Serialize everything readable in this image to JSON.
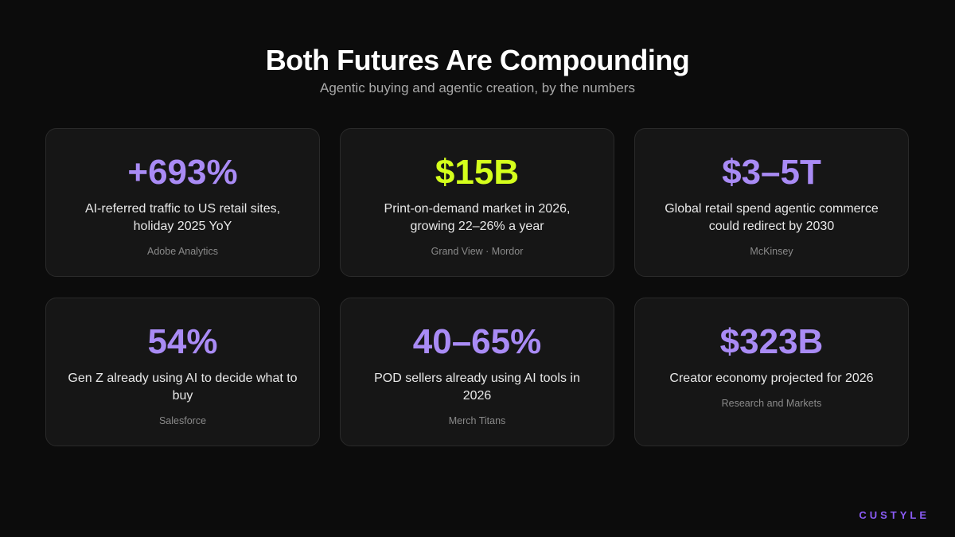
{
  "header": {
    "title": "Both Futures Are Compounding",
    "subtitle": "Agentic buying and agentic creation, by the numbers"
  },
  "cards": [
    {
      "stat": "+693%",
      "description": "AI-referred traffic to US retail sites, holiday 2025 YoY",
      "source": "Adobe Analytics"
    },
    {
      "stat": "$15B",
      "description": "Print-on-demand market in 2026, growing 22–26% a year",
      "source": "Grand View · Mordor"
    },
    {
      "stat": "$3–5T",
      "description": "Global retail spend agentic commerce could redirect by 2030",
      "source": "McKinsey"
    },
    {
      "stat": "54%",
      "description": "Gen Z already using AI to decide what to buy",
      "source": "Salesforce"
    },
    {
      "stat": "40–65%",
      "description": "POD sellers already using AI tools in 2026",
      "source": "Merch Titans"
    },
    {
      "stat": "$323B",
      "description": "Creator economy projected for 2026",
      "source": "Research and Markets"
    }
  ],
  "brand": "CUSTYLE"
}
